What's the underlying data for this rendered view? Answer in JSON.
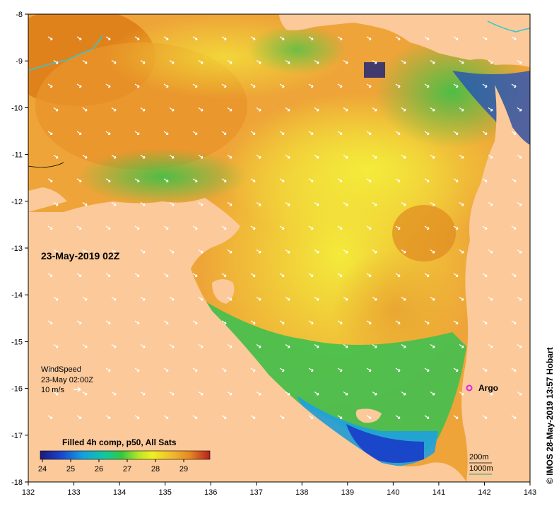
{
  "map": {
    "date_label": "23-May-2019 02Z",
    "x_ticks": [
      "132",
      "133",
      "134",
      "135",
      "136",
      "137",
      "138",
      "139",
      "140",
      "141",
      "142",
      "143"
    ],
    "y_ticks": [
      "-8",
      "-9",
      "-10",
      "-11",
      "-12",
      "-13",
      "-14",
      "-15",
      "-16",
      "-17",
      "-18"
    ],
    "colors": {
      "land": "#fbc99a",
      "river": "#2ec8d6",
      "argo": "#e020e0",
      "bathy_200": "#000000",
      "bathy_1000": "#2ea87a"
    }
  },
  "wind_legend": {
    "title": "WindSpeed",
    "time": "23-May 02:00Z",
    "scale": "10 m/s"
  },
  "colorbar": {
    "title": "Filled 4h comp, p50, All Sats",
    "labels": [
      "24",
      "25",
      "26",
      "27",
      "28",
      "29"
    ]
  },
  "argo": {
    "label": "Argo",
    "lon": 141.7,
    "lat": -16.0
  },
  "bathy_legend": {
    "contour_200": "200m",
    "contour_1000": "1000m"
  },
  "credit": "© IMOS 28-May-2019 13:57 Hobart"
}
